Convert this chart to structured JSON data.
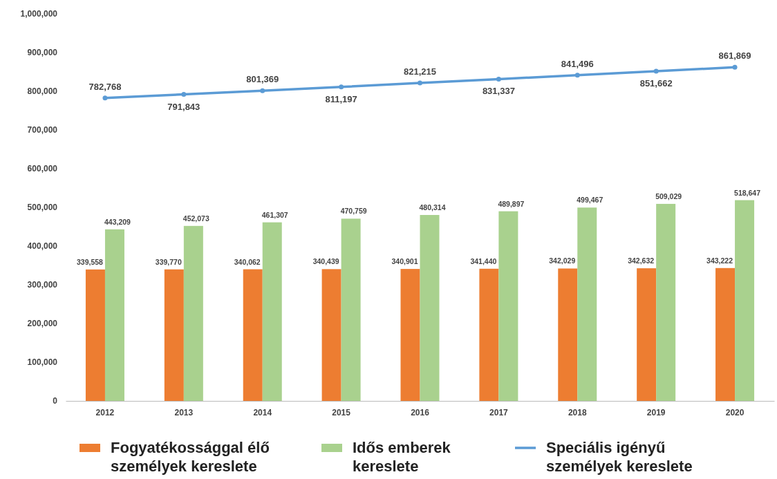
{
  "chart_data": {
    "type": "bar",
    "categories": [
      "2012",
      "2013",
      "2014",
      "2015",
      "2016",
      "2017",
      "2018",
      "2019",
      "2020"
    ],
    "series": [
      {
        "name": "Fogyatékossággal élő személyek kereslete",
        "color": "#ed7d31",
        "values": [
          339558,
          339770,
          340062,
          340439,
          340901,
          341440,
          342029,
          342632,
          343222
        ],
        "value_labels": [
          "339,558",
          "339,770",
          "340,062",
          "340,439",
          "340,901",
          "341,440",
          "342,029",
          "342,632",
          "343,222"
        ]
      },
      {
        "name": "Idős emberek kereslete",
        "color": "#a9d18e",
        "values": [
          443209,
          452073,
          461307,
          470759,
          480314,
          489897,
          499467,
          509029,
          518647
        ],
        "value_labels": [
          "443,209",
          "452,073",
          "461,307",
          "470,759",
          "480,314",
          "489,897",
          "499,467",
          "509,029",
          "518,647"
        ]
      },
      {
        "name": "Speciális igényű személyek kereslete",
        "type": "line",
        "color": "#5b9bd5",
        "marker": "circle",
        "values": [
          782768,
          791843,
          801369,
          811197,
          821215,
          831337,
          841496,
          851662,
          861869
        ],
        "value_labels": [
          "782,768",
          "791,843",
          "801,369",
          "811,197",
          "821,215",
          "831,337",
          "841,496",
          "851,662",
          "861,869"
        ]
      }
    ],
    "ylim": [
      0,
      1000000
    ],
    "yticks": [
      {
        "value": 0,
        "label": "0"
      },
      {
        "value": 100000,
        "label": "100,000"
      },
      {
        "value": 200000,
        "label": "200,000"
      },
      {
        "value": 300000,
        "label": "300,000"
      },
      {
        "value": 400000,
        "label": "400,000"
      },
      {
        "value": 500000,
        "label": "500,000"
      },
      {
        "value": 600000,
        "label": "600,000"
      },
      {
        "value": 700000,
        "label": "700,000"
      },
      {
        "value": 800000,
        "label": "800,000"
      },
      {
        "value": 900000,
        "label": "900,000"
      },
      {
        "value": 1000000,
        "label": "1,000,000"
      }
    ],
    "grid": false,
    "legend": "bottom"
  }
}
